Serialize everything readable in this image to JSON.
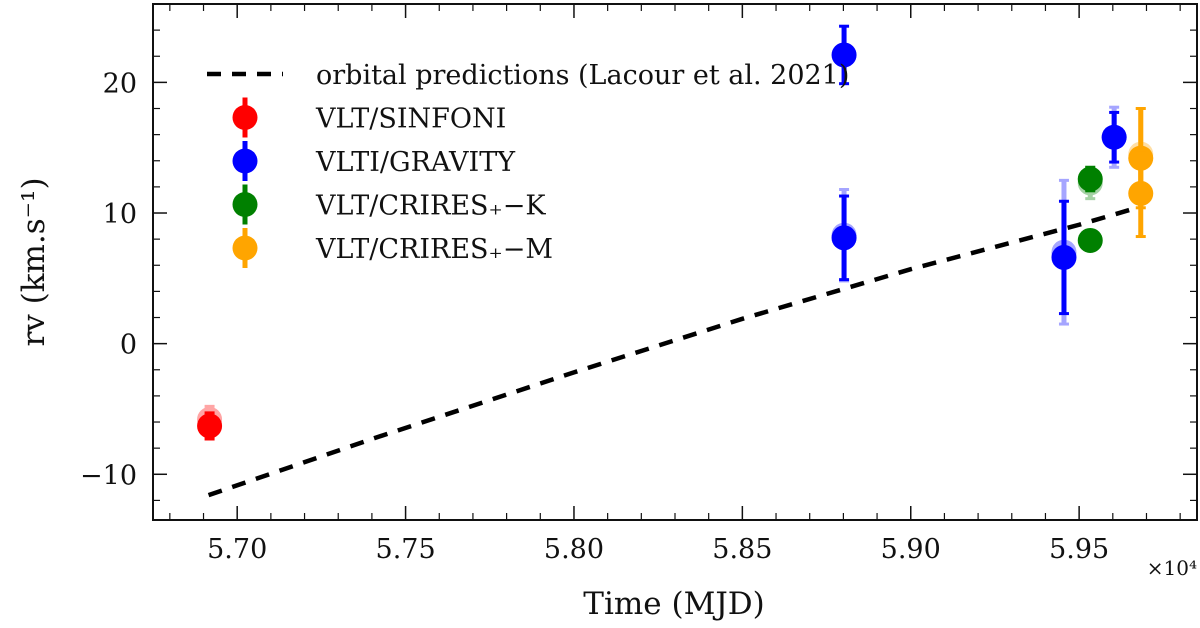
{
  "chart_data": {
    "type": "scatter",
    "title": "",
    "xlabel": "Time (MJD)",
    "ylabel": "rv (km.s⁻¹)",
    "x_scale_note": "×10⁴",
    "xlim": [
      5.675,
      5.985
    ],
    "ylim": [
      -13.5,
      26
    ],
    "xticks": [
      5.7,
      5.75,
      5.8,
      5.85,
      5.9,
      5.95
    ],
    "xtick_labels": [
      "5.70",
      "5.75",
      "5.80",
      "5.85",
      "5.90",
      "5.95"
    ],
    "yticks": [
      -10,
      0,
      10,
      20
    ],
    "ytick_labels": [
      "−10",
      "0",
      "10",
      "20"
    ],
    "legend_position": "top-left",
    "series": [
      {
        "name": "orbital predictions (Lacour et al. 2021)",
        "kind": "line",
        "style": "dashed",
        "color": "#000000",
        "x": [
          5.6915,
          5.74,
          5.8,
          5.85,
          5.9,
          5.95,
          5.9685
        ],
        "y": [
          -11.6,
          -7.3,
          -2.2,
          1.9,
          5.7,
          9.1,
          10.5
        ]
      },
      {
        "name": "VLT/SINFONI",
        "kind": "points",
        "color": "#ff0000",
        "points": [
          {
            "x": 5.6918,
            "y": -6.3,
            "err": 1.0
          },
          {
            "x": 5.6918,
            "y": -5.8,
            "err": 1.0,
            "faded": true
          }
        ]
      },
      {
        "name": "VLTI/GRAVITY",
        "kind": "points",
        "color": "#0000ff",
        "points": [
          {
            "x": 5.8802,
            "y": 22.1,
            "err": 2.2
          },
          {
            "x": 5.8802,
            "y": 8.3,
            "err": 3.5,
            "faded": true
          },
          {
            "x": 5.8802,
            "y": 8.1,
            "err": 3.2
          },
          {
            "x": 5.9455,
            "y": 7.0,
            "err": 5.5,
            "faded": true
          },
          {
            "x": 5.9455,
            "y": 6.6,
            "err": 4.3
          },
          {
            "x": 5.9604,
            "y": 15.8,
            "err": 2.3,
            "faded": true
          },
          {
            "x": 5.9604,
            "y": 15.8,
            "err": 1.9
          }
        ]
      },
      {
        "name": "VLT/CRIRES₊−K",
        "kind": "points",
        "color": "#008000",
        "points": [
          {
            "x": 5.9533,
            "y": 12.3,
            "err": 1.2,
            "faded": true
          },
          {
            "x": 5.9533,
            "y": 12.6,
            "err": 0.9
          },
          {
            "x": 5.9533,
            "y": 7.9,
            "err": 0.5
          }
        ]
      },
      {
        "name": "VLT/CRIRES₊−M",
        "kind": "points",
        "color": "#ffa500",
        "points": [
          {
            "x": 5.9683,
            "y": 14.5,
            "err": 3.5,
            "faded": true
          },
          {
            "x": 5.9683,
            "y": 14.2,
            "err": 3.8
          },
          {
            "x": 5.9683,
            "y": 11.5,
            "err": 3.3
          }
        ]
      }
    ]
  }
}
